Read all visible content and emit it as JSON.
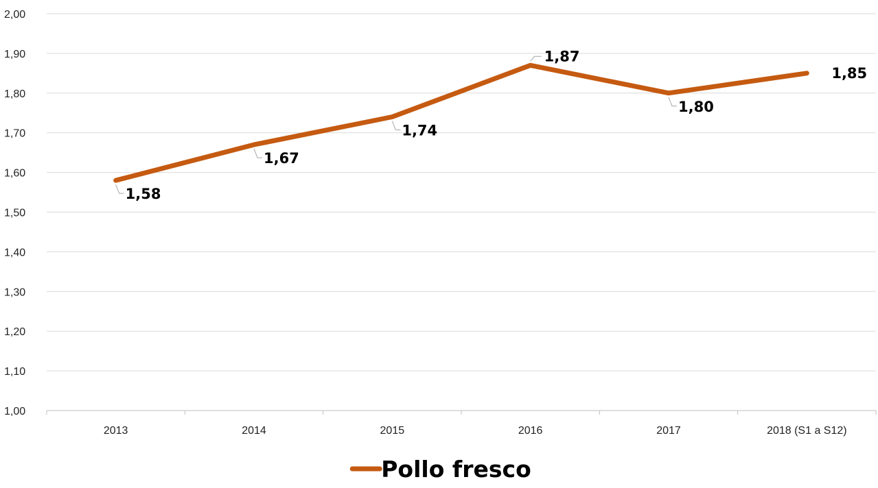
{
  "chart_data": {
    "type": "line",
    "categories": [
      "2013",
      "2014",
      "2015",
      "2016",
      "2017",
      "2018 (S1 a S12)"
    ],
    "series": [
      {
        "name": "Pollo fresco",
        "values": [
          1.58,
          1.67,
          1.74,
          1.87,
          1.8,
          1.85
        ],
        "labels": [
          "1,58",
          "1,67",
          "1,74",
          "1,87",
          "1,80",
          "1,85"
        ],
        "color": "#C55A11"
      }
    ],
    "yticks": [
      "1,00",
      "1,10",
      "1,20",
      "1,30",
      "1,40",
      "1,50",
      "1,60",
      "1,70",
      "1,80",
      "1,90",
      "2,00"
    ],
    "ylim": [
      1.0,
      2.0
    ],
    "grid": true,
    "legend_position": "bottom",
    "title": "",
    "xlabel": "",
    "ylabel": ""
  },
  "colors": {
    "grid": "#d9d9d9",
    "axis": "#bfbfbf",
    "leader": "#a6a6a6"
  }
}
